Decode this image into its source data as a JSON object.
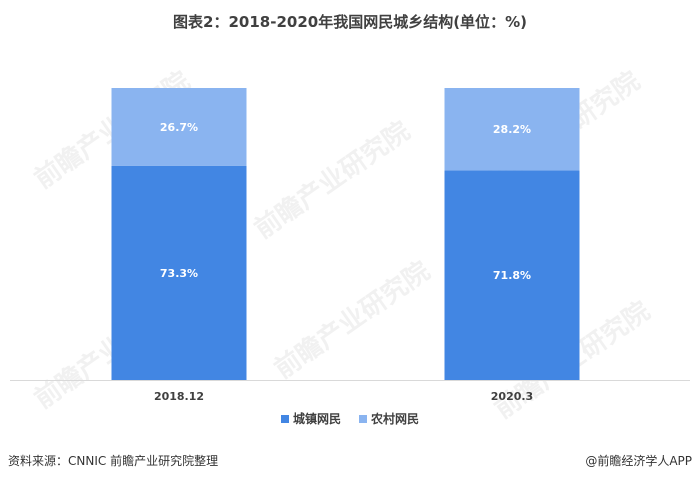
{
  "title": "图表2：2018-2020年我国网民城乡结构(单位：%)",
  "source": "资料来源：CNNIC 前瞻产业研究院整理",
  "credit": "@前瞻经济学人APP",
  "watermark": "前瞻产业研究院",
  "colors": {
    "urban": "#4286e3",
    "rural": "#8ab4f0",
    "axis": "#d9d9d9",
    "label_inside": "#ffffff",
    "text": "#404040"
  },
  "chart_data": {
    "type": "bar",
    "stacked": true,
    "categories": [
      "2018.12",
      "2020.3"
    ],
    "series": [
      {
        "name": "城镇网民",
        "values": [
          73.3,
          71.8
        ],
        "labels": [
          "73.3%",
          "71.8%"
        ]
      },
      {
        "name": "农村网民",
        "values": [
          26.7,
          28.2
        ],
        "labels": [
          "26.7%",
          "28.2%"
        ]
      }
    ],
    "ylim": [
      0,
      100
    ],
    "grid": false,
    "legend_position": "bottom"
  }
}
